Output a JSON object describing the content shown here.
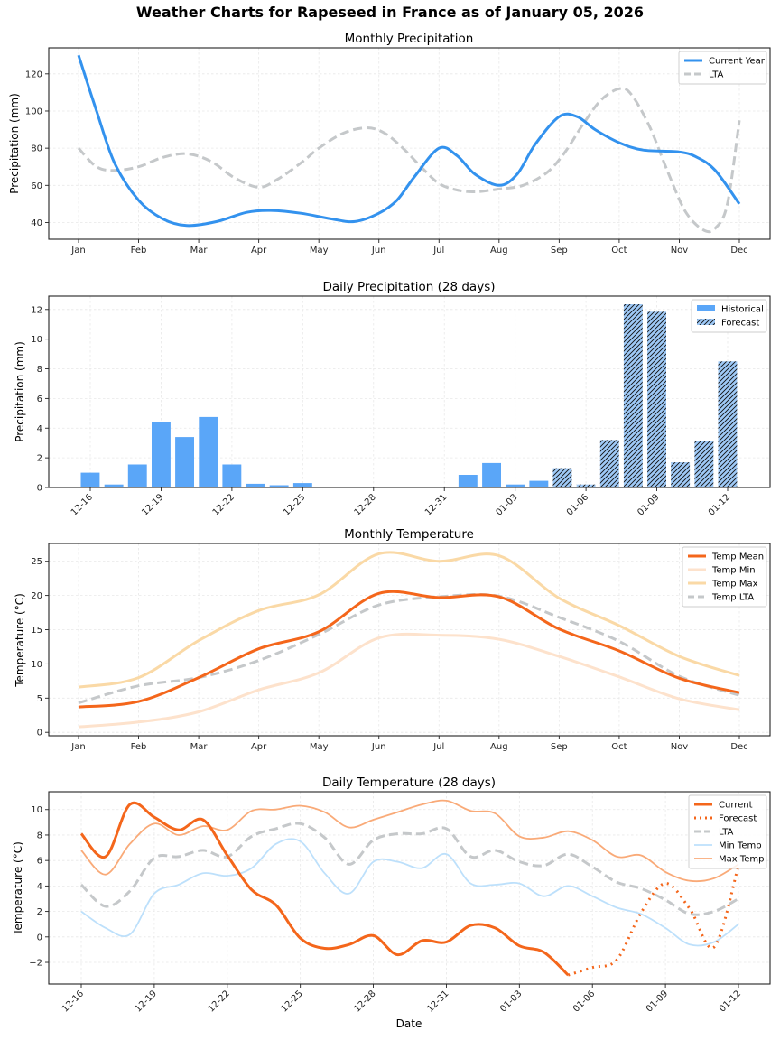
{
  "suptitle": "Weather Charts for Rapeseed in France as of January 05, 2026",
  "colors": {
    "precip_current": "#3392ee",
    "lta": "#c5c8ca",
    "hist_bar": "#5aa6f8",
    "forecast_bar": "#9ec9f7",
    "temp_mean": "#f4661b",
    "temp_min": "#fde2cc",
    "temp_max": "#fad9a6",
    "daily_min": "#bde0fb",
    "daily_max": "#f9aa78",
    "current_daily": "#f4661b"
  },
  "chart_data": [
    {
      "id": "monthly_precip",
      "type": "line",
      "title": "Monthly Precipitation",
      "xlabel": "",
      "ylabel": "Precipitation (mm)",
      "categories": [
        "Jan",
        "Feb",
        "Mar",
        "Apr",
        "May",
        "Jun",
        "Jul",
        "Aug",
        "Sep",
        "Oct",
        "Nov",
        "Dec"
      ],
      "yticks": [
        40,
        60,
        80,
        100,
        120
      ],
      "ylim": [
        31,
        134
      ],
      "grid": true,
      "legend_position": "top-right",
      "series": [
        {
          "name": "Current Year",
          "style": "solid",
          "smooth_values": [
            130,
            52,
            38.5,
            46.5,
            42,
            47,
            80,
            60,
            98,
            82,
            78,
            50
          ],
          "curve": [
            [
              0,
              130
            ],
            [
              0.3,
              100
            ],
            [
              0.6,
              72
            ],
            [
              1,
              52
            ],
            [
              1.4,
              42
            ],
            [
              1.8,
              38.4
            ],
            [
              2.3,
              40.5
            ],
            [
              2.8,
              45.5
            ],
            [
              3.2,
              46.5
            ],
            [
              3.7,
              45
            ],
            [
              4.2,
              42
            ],
            [
              4.6,
              40.5
            ],
            [
              5,
              45
            ],
            [
              5.3,
              52
            ],
            [
              5.6,
              65
            ],
            [
              6,
              80
            ],
            [
              6.3,
              76
            ],
            [
              6.6,
              66
            ],
            [
              7,
              60
            ],
            [
              7.3,
              66
            ],
            [
              7.6,
              82
            ],
            [
              8,
              97
            ],
            [
              8.3,
              97
            ],
            [
              8.6,
              90
            ],
            [
              9,
              83
            ],
            [
              9.4,
              79
            ],
            [
              10,
              78
            ],
            [
              10.3,
              75
            ],
            [
              10.6,
              68
            ],
            [
              11,
              50
            ]
          ]
        },
        {
          "name": "LTA",
          "style": "dashed",
          "smooth_values": [
            80,
            70,
            77,
            59,
            80,
            89,
            61,
            58,
            75,
            112,
            40,
            95
          ],
          "curve": [
            [
              0,
              80
            ],
            [
              0.3,
              70
            ],
            [
              0.6,
              68
            ],
            [
              1,
              70
            ],
            [
              1.4,
              75
            ],
            [
              1.8,
              77
            ],
            [
              2.2,
              73
            ],
            [
              2.6,
              64
            ],
            [
              3,
              59
            ],
            [
              3.3,
              63
            ],
            [
              3.7,
              72
            ],
            [
              4,
              80
            ],
            [
              4.4,
              88
            ],
            [
              4.8,
              91
            ],
            [
              5.1,
              88
            ],
            [
              5.4,
              80
            ],
            [
              5.7,
              70
            ],
            [
              6,
              61
            ],
            [
              6.3,
              57.5
            ],
            [
              6.6,
              56.5
            ],
            [
              7,
              58
            ],
            [
              7.4,
              60
            ],
            [
              7.8,
              67
            ],
            [
              8.1,
              78
            ],
            [
              8.4,
              93
            ],
            [
              8.7,
              106
            ],
            [
              9,
              112
            ],
            [
              9.2,
              109
            ],
            [
              9.5,
              92
            ],
            [
              9.8,
              68
            ],
            [
              10.1,
              46
            ],
            [
              10.4,
              36
            ],
            [
              10.6,
              37
            ],
            [
              10.8,
              50
            ],
            [
              11,
              95
            ]
          ]
        }
      ]
    },
    {
      "id": "daily_precip",
      "type": "bar",
      "title": "Daily Precipitation (28 days)",
      "xlabel": "",
      "ylabel": "Precipitation (mm)",
      "categories": [
        "12-16",
        "12-17",
        "12-18",
        "12-19",
        "12-20",
        "12-21",
        "12-22",
        "12-23",
        "12-24",
        "12-25",
        "12-26",
        "12-27",
        "12-28",
        "12-29",
        "12-30",
        "12-31",
        "01-01",
        "01-02",
        "01-03",
        "01-04",
        "01-05",
        "01-06",
        "01-07",
        "01-08",
        "01-09",
        "01-10",
        "01-11",
        "01-12"
      ],
      "xticks": [
        "12-16",
        "12-19",
        "12-22",
        "12-25",
        "12-28",
        "12-31",
        "01-03",
        "01-06",
        "01-09",
        "01-12"
      ],
      "yticks": [
        0,
        2,
        4,
        6,
        8,
        10,
        12
      ],
      "ylim": [
        0,
        12.9
      ],
      "grid": true,
      "legend_position": "top-right",
      "series": [
        {
          "name": "Historical",
          "values": [
            1.0,
            0.2,
            1.55,
            4.4,
            3.4,
            4.75,
            1.55,
            0.25,
            0.15,
            0.3,
            0,
            0,
            0,
            0,
            0,
            0,
            0.85,
            1.65,
            0.2,
            0.45,
            null,
            null,
            null,
            null,
            null,
            null,
            null,
            null
          ]
        },
        {
          "name": "Forecast",
          "values": [
            null,
            null,
            null,
            null,
            null,
            null,
            null,
            null,
            null,
            null,
            null,
            null,
            null,
            null,
            null,
            null,
            null,
            null,
            null,
            null,
            1.3,
            0.2,
            3.2,
            12.35,
            11.85,
            1.7,
            3.15,
            8.5
          ]
        }
      ]
    },
    {
      "id": "monthly_temp",
      "type": "line",
      "title": "Monthly Temperature",
      "xlabel": "",
      "ylabel": "Temperature (°C)",
      "categories": [
        "Jan",
        "Feb",
        "Mar",
        "Apr",
        "May",
        "Jun",
        "Jul",
        "Aug",
        "Sep",
        "Oct",
        "Nov",
        "Dec"
      ],
      "yticks": [
        0,
        5,
        10,
        15,
        20,
        25
      ],
      "ylim": [
        -0.5,
        27.6
      ],
      "grid": true,
      "legend_position": "top-right",
      "series": [
        {
          "name": "Temp Mean",
          "style": "solid",
          "values": [
            3.7,
            4.5,
            8.0,
            12.2,
            14.7,
            20.3,
            19.7,
            19.8,
            15.1,
            11.9,
            7.9,
            5.8
          ]
        },
        {
          "name": "Temp Min",
          "style": "solid",
          "values": [
            0.8,
            1.5,
            3.0,
            6.2,
            8.7,
            13.8,
            14.2,
            13.6,
            11.1,
            8.1,
            4.9,
            3.3
          ]
        },
        {
          "name": "Temp Max",
          "style": "solid",
          "values": [
            6.6,
            8.0,
            13.4,
            17.8,
            20.1,
            26.1,
            25.0,
            25.8,
            19.6,
            15.6,
            11.1,
            8.3
          ]
        },
        {
          "name": "Temp LTA",
          "style": "dashed",
          "values": [
            4.3,
            6.8,
            8.0,
            10.5,
            14.3,
            18.6,
            19.8,
            19.9,
            16.8,
            13.3,
            8.2,
            5.4
          ]
        }
      ]
    },
    {
      "id": "daily_temp",
      "type": "line",
      "title": "Daily Temperature (28 days)",
      "xlabel": "Date",
      "ylabel": "Temperature (°C)",
      "categories": [
        "12-16",
        "12-17",
        "12-18",
        "12-19",
        "12-20",
        "12-21",
        "12-22",
        "12-23",
        "12-24",
        "12-25",
        "12-26",
        "12-27",
        "12-28",
        "12-29",
        "12-30",
        "12-31",
        "01-01",
        "01-02",
        "01-03",
        "01-04",
        "01-05",
        "01-06",
        "01-07",
        "01-08",
        "01-09",
        "01-10",
        "01-11",
        "01-12"
      ],
      "xticks": [
        "12-16",
        "12-19",
        "12-22",
        "12-25",
        "12-28",
        "12-31",
        "01-03",
        "01-06",
        "01-09",
        "01-12"
      ],
      "yticks": [
        -2,
        0,
        2,
        4,
        6,
        8,
        10
      ],
      "ylim": [
        -3.7,
        11.4
      ],
      "grid": true,
      "legend_position": "top-right",
      "series": [
        {
          "name": "Current",
          "style": "solid",
          "values": [
            8.1,
            6.3,
            10.4,
            9.4,
            8.4,
            9.2,
            6.4,
            3.7,
            2.5,
            -0.1,
            -0.9,
            -0.6,
            0.1,
            -1.4,
            -0.3,
            -0.4,
            0.9,
            0.7,
            -0.7,
            -1.2,
            -3.0
          ]
        },
        {
          "name": "Forecast",
          "style": "dotted",
          "start_index": 20,
          "values": [
            -3.0,
            -2.4,
            -1.8,
            1.9,
            4.2,
            2.2,
            -0.8,
            5.6
          ]
        },
        {
          "name": "LTA",
          "style": "dashed",
          "values": [
            4.1,
            2.4,
            3.6,
            6.2,
            6.3,
            6.8,
            6.3,
            7.9,
            8.5,
            8.9,
            7.8,
            5.7,
            7.6,
            8.1,
            8.1,
            8.5,
            6.3,
            6.8,
            5.9,
            5.6,
            6.5,
            5.5,
            4.3,
            3.8,
            2.9,
            1.8,
            2.0,
            3.0
          ]
        },
        {
          "name": "Min Temp",
          "style": "solid",
          "values": [
            2.0,
            0.7,
            0.2,
            3.4,
            4.1,
            5.0,
            4.8,
            5.4,
            7.3,
            7.5,
            5.0,
            3.4,
            5.9,
            5.9,
            5.4,
            6.5,
            4.2,
            4.1,
            4.2,
            3.2,
            4.0,
            3.2,
            2.3,
            1.8,
            0.7,
            -0.6,
            -0.4,
            1.0
          ]
        },
        {
          "name": "Max Temp",
          "style": "solid",
          "values": [
            6.8,
            4.9,
            7.3,
            8.9,
            8.0,
            8.7,
            8.4,
            9.9,
            10.0,
            10.3,
            9.8,
            8.6,
            9.2,
            9.8,
            10.4,
            10.7,
            9.9,
            9.7,
            7.9,
            7.8,
            8.3,
            7.6,
            6.3,
            6.4,
            5.1,
            4.4,
            4.6,
            5.7
          ]
        }
      ]
    }
  ]
}
